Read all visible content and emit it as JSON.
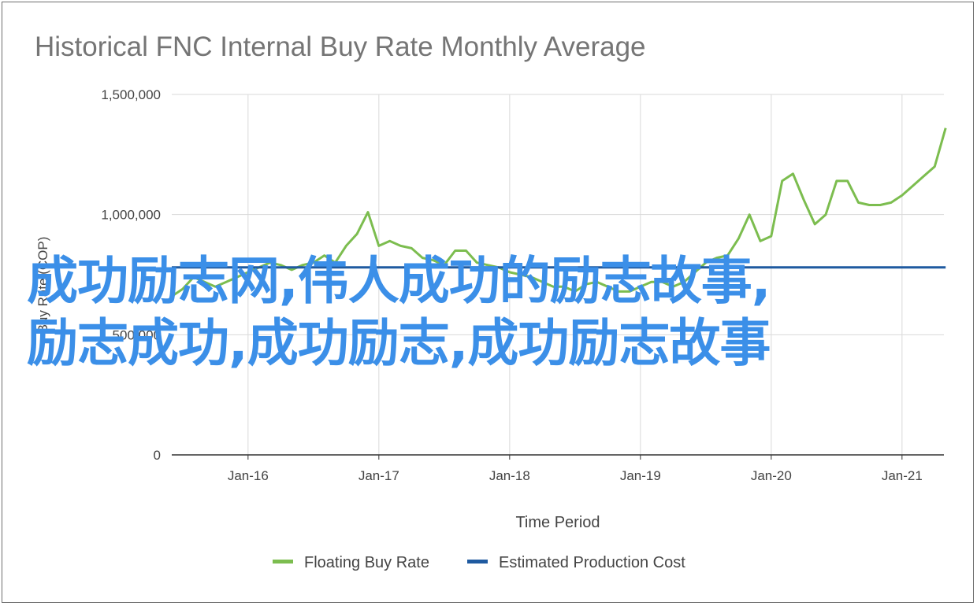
{
  "chart_data": {
    "type": "line",
    "title": "Historical FNC Internal Buy Rate Monthly Average",
    "xlabel": "Time Period",
    "ylabel": "Buy Rate (COP)",
    "ylim": [
      0,
      1500000
    ],
    "yticks": [
      0,
      500000,
      1000000,
      1500000
    ],
    "ytick_labels": [
      "0",
      "500,000",
      "1,000,000",
      "1,500,000"
    ],
    "xticks": [
      "Jan-16",
      "Jan-17",
      "Jan-18",
      "Jan-19",
      "Jan-20",
      "Jan-21"
    ],
    "grid": true,
    "legend_position": "bottom",
    "series": [
      {
        "name": "Floating Buy Rate",
        "color": "#7cbd4f",
        "x": [
          "2015-06",
          "2015-07",
          "2015-08",
          "2015-09",
          "2015-10",
          "2015-11",
          "2015-12",
          "2016-01",
          "2016-02",
          "2016-03",
          "2016-04",
          "2016-05",
          "2016-06",
          "2016-07",
          "2016-08",
          "2016-09",
          "2016-10",
          "2016-11",
          "2016-12",
          "2017-01",
          "2017-02",
          "2017-03",
          "2017-04",
          "2017-05",
          "2017-06",
          "2017-07",
          "2017-08",
          "2017-09",
          "2017-10",
          "2017-11",
          "2017-12",
          "2018-01",
          "2018-02",
          "2018-03",
          "2018-04",
          "2018-05",
          "2018-06",
          "2018-07",
          "2018-08",
          "2018-09",
          "2018-10",
          "2018-11",
          "2018-12",
          "2019-01",
          "2019-02",
          "2019-03",
          "2019-04",
          "2019-05",
          "2019-06",
          "2019-07",
          "2019-08",
          "2019-09",
          "2019-10",
          "2019-11",
          "2019-12",
          "2020-01",
          "2020-02",
          "2020-03",
          "2020-04",
          "2020-05",
          "2020-06",
          "2020-07",
          "2020-08",
          "2020-09",
          "2020-10",
          "2020-11",
          "2020-12",
          "2021-01",
          "2021-02",
          "2021-03",
          "2021-04",
          "2021-05"
        ],
        "values": [
          660000,
          690000,
          740000,
          720000,
          700000,
          720000,
          740000,
          760000,
          780000,
          800000,
          790000,
          770000,
          790000,
          800000,
          830000,
          800000,
          870000,
          920000,
          1010000,
          870000,
          890000,
          870000,
          860000,
          820000,
          810000,
          790000,
          850000,
          850000,
          800000,
          790000,
          780000,
          760000,
          750000,
          740000,
          720000,
          700000,
          700000,
          680000,
          710000,
          720000,
          700000,
          680000,
          680000,
          700000,
          720000,
          720000,
          700000,
          720000,
          760000,
          800000,
          820000,
          830000,
          900000,
          1000000,
          890000,
          910000,
          1140000,
          1170000,
          1060000,
          960000,
          1000000,
          1140000,
          1140000,
          1050000,
          1040000,
          1040000,
          1050000,
          1080000,
          1120000,
          1160000,
          1200000,
          1360000
        ]
      },
      {
        "name": "Estimated Production Cost",
        "color": "#1f5aa0",
        "x": [
          "2015-06",
          "2021-05"
        ],
        "values": [
          780000,
          780000
        ]
      }
    ]
  },
  "overlay_text": {
    "line1": "成功励志网,伟人成功的励志故事,",
    "line2": "励志成功,成功励志,成功励志故事"
  }
}
